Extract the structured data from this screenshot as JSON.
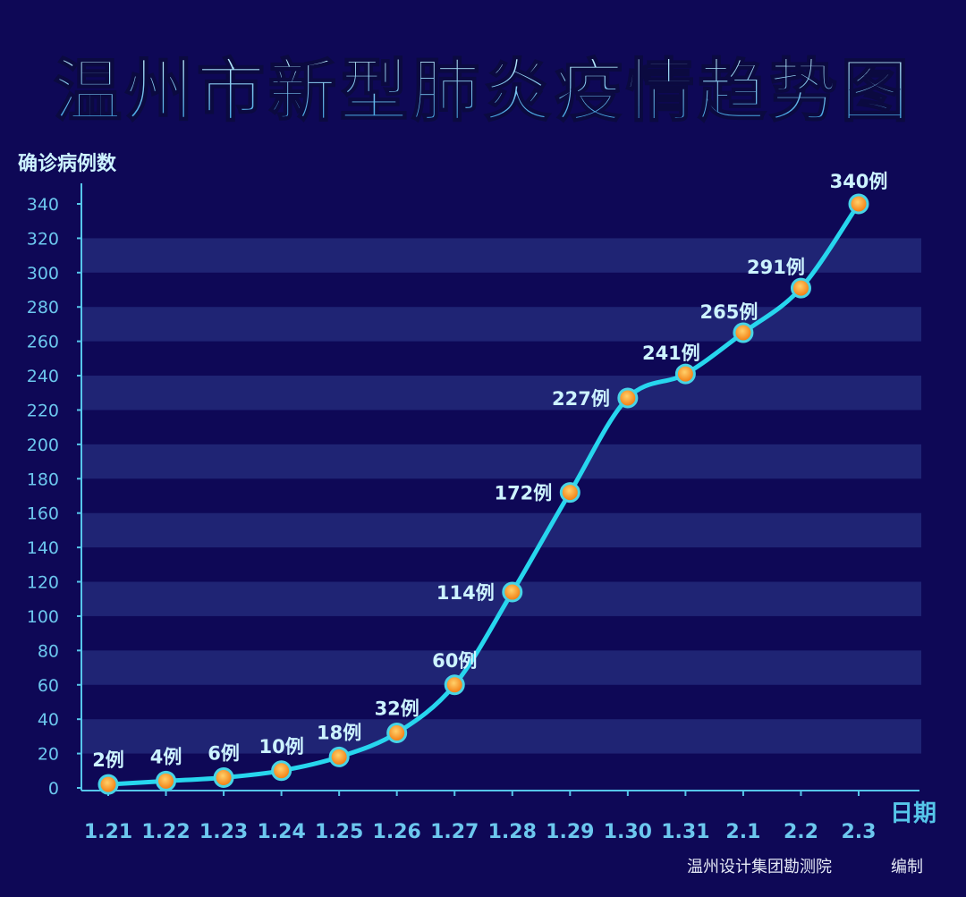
{
  "colors": {
    "background": "#0e0856",
    "band": "#1f2474",
    "axis": "#56c6ea",
    "line": "#27d6ee",
    "point_fill": "#ff8a1c",
    "point_ring": "#47d4e6",
    "label": "#cdf3ff",
    "tick": "#6cc7ee",
    "title_top": "#b8ecff",
    "title_bottom": "#2f9fe0"
  },
  "chart_data": {
    "type": "line",
    "title": "温州市新型肺炎疫情趋势图",
    "ylabel": "确诊病例数",
    "xlabel": "日期",
    "source": "温州设计集团勘测院",
    "source_suffix": "编制",
    "categories": [
      "1.21",
      "1.22",
      "1.23",
      "1.24",
      "1.25",
      "1.26",
      "1.27",
      "1.28",
      "1.29",
      "1.30",
      "1.31",
      "2.1",
      "2.2",
      "2.3"
    ],
    "values": [
      2,
      4,
      6,
      10,
      18,
      32,
      60,
      114,
      172,
      227,
      241,
      265,
      291,
      340
    ],
    "data_labels": [
      "2例",
      "4例",
      "6例",
      "10例",
      "18例",
      "32例",
      "60例",
      "114例",
      "172例",
      "227例",
      "241例",
      "265例",
      "291例",
      "340例"
    ],
    "ylim": [
      0,
      340
    ],
    "yticks": [
      "0",
      "20",
      "40",
      "60",
      "80",
      "100",
      "120",
      "140",
      "160",
      "180",
      "200",
      "220",
      "240",
      "260",
      "280",
      "300",
      "320",
      "340"
    ],
    "grid": "horizontal bands",
    "legend": "none"
  }
}
